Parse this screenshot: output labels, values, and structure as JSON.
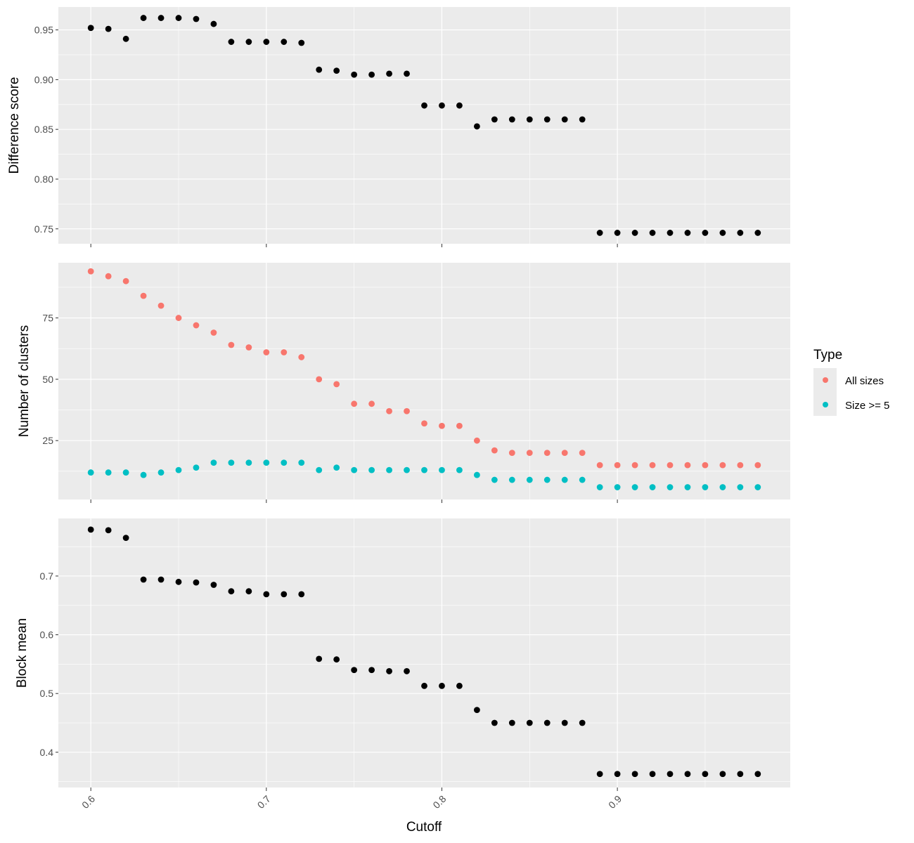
{
  "chart_data": {
    "type": "scatter",
    "xlabel": "Cutoff",
    "x_ticks": [
      0.6,
      0.7,
      0.8,
      0.9
    ],
    "x_tick_labels": [
      "0.6",
      "0.7",
      "0.8",
      "0.9"
    ],
    "xlim": [
      0.5815,
      0.9985
    ],
    "x": [
      0.6,
      0.61,
      0.62,
      0.63,
      0.64,
      0.65,
      0.66,
      0.67,
      0.68,
      0.69,
      0.7,
      0.71,
      0.72,
      0.73,
      0.74,
      0.75,
      0.76,
      0.77,
      0.78,
      0.79,
      0.8,
      0.81,
      0.82,
      0.83,
      0.84,
      0.85,
      0.86,
      0.87,
      0.88,
      0.89,
      0.9,
      0.91,
      0.92,
      0.93,
      0.94,
      0.95,
      0.96,
      0.97,
      0.98
    ],
    "panel_background": "#ebebeb",
    "grid": true,
    "grid_color": "#ffffff",
    "legend": {
      "title": "Type",
      "placement": "right",
      "entries": [
        {
          "label": "All sizes",
          "color": "#f8766d"
        },
        {
          "label": "Size >= 5",
          "color": "#00bfc4"
        }
      ]
    },
    "panels": [
      {
        "ylabel": "Difference score",
        "ylim": [
          0.735,
          0.973
        ],
        "y_ticks": [
          0.75,
          0.8,
          0.85,
          0.9,
          0.95
        ],
        "y_tick_labels": [
          "0.75",
          "0.80",
          "0.85",
          "0.90",
          "0.95"
        ],
        "series": [
          {
            "color": "#000000",
            "values": [
              0.952,
              0.951,
              0.941,
              0.962,
              0.962,
              0.962,
              0.961,
              0.956,
              0.938,
              0.938,
              0.938,
              0.938,
              0.937,
              0.91,
              0.909,
              0.905,
              0.905,
              0.906,
              0.906,
              0.874,
              0.874,
              0.874,
              0.853,
              0.86,
              0.86,
              0.86,
              0.86,
              0.86,
              0.86,
              0.746,
              0.746,
              0.746,
              0.746,
              0.746,
              0.746,
              0.746,
              0.746,
              0.746,
              0.746
            ]
          }
        ]
      },
      {
        "ylabel": "Number of clusters",
        "ylim": [
          1.0,
          97.5
        ],
        "y_ticks": [
          25,
          50,
          75
        ],
        "y_tick_labels": [
          "25",
          "50",
          "75"
        ],
        "series": [
          {
            "name": "All sizes",
            "color": "#f8766d",
            "values": [
              94,
              92,
              90,
              84,
              80,
              75,
              72,
              69,
              64,
              63,
              61,
              61,
              59,
              50,
              48,
              40,
              40,
              37,
              37,
              32,
              31,
              31,
              25,
              21,
              20,
              20,
              20,
              20,
              20,
              15,
              15,
              15,
              15,
              15,
              15,
              15,
              15,
              15,
              15
            ]
          },
          {
            "name": "Size >= 5",
            "color": "#00bfc4",
            "values": [
              12,
              12,
              12,
              11,
              12,
              13,
              14,
              16,
              16,
              16,
              16,
              16,
              16,
              13,
              14,
              13,
              13,
              13,
              13,
              13,
              13,
              13,
              11,
              9,
              9,
              9,
              9,
              9,
              9,
              6,
              6,
              6,
              6,
              6,
              6,
              6,
              6,
              6,
              6
            ]
          }
        ]
      },
      {
        "ylabel": "Block mean",
        "ylim": [
          0.34,
          0.798
        ],
        "y_ticks": [
          0.4,
          0.5,
          0.6,
          0.7
        ],
        "y_tick_labels": [
          "0.4",
          "0.5",
          "0.6",
          "0.7"
        ],
        "series": [
          {
            "color": "#000000",
            "values": [
              0.779,
              0.778,
              0.765,
              0.694,
              0.694,
              0.69,
              0.689,
              0.685,
              0.674,
              0.674,
              0.669,
              0.669,
              0.669,
              0.559,
              0.558,
              0.54,
              0.54,
              0.538,
              0.538,
              0.513,
              0.513,
              0.513,
              0.472,
              0.45,
              0.45,
              0.45,
              0.45,
              0.45,
              0.45,
              0.363,
              0.363,
              0.363,
              0.363,
              0.363,
              0.363,
              0.363,
              0.363,
              0.363,
              0.363
            ]
          }
        ]
      }
    ]
  }
}
